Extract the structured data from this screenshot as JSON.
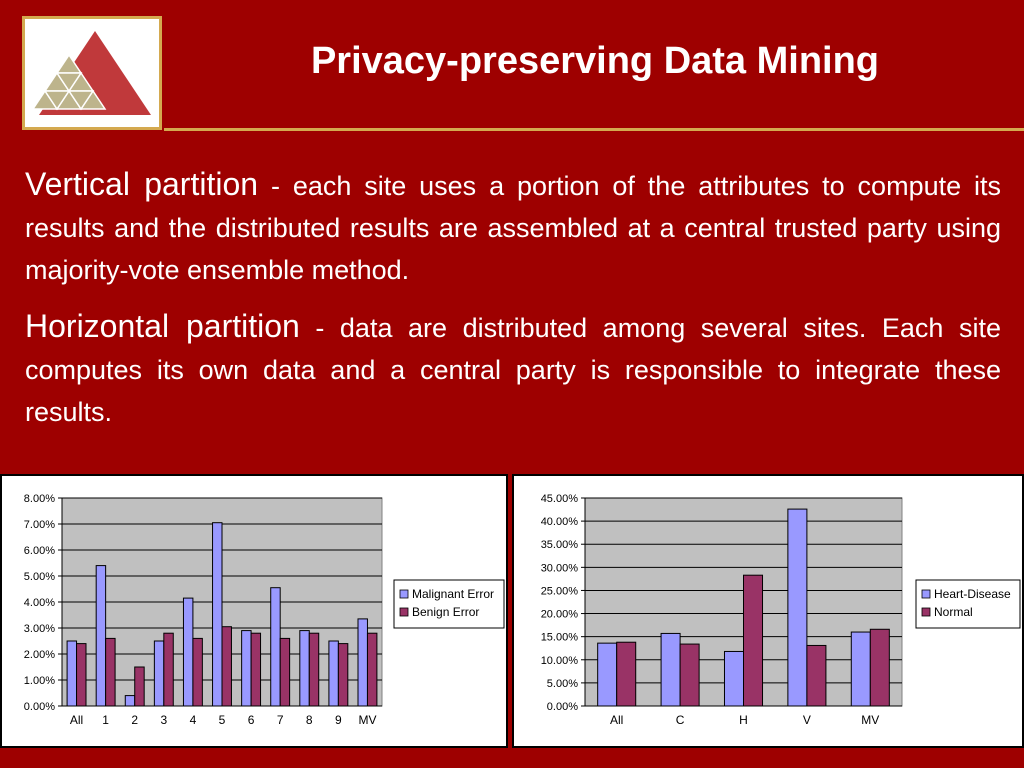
{
  "slide": {
    "title": "Privacy-preserving Data Mining",
    "colors": {
      "background": "#9e0000",
      "accent": "#d4a94f",
      "logo_red": "#c0393b",
      "logo_tan": "#bdb48c"
    },
    "paragraphs": [
      {
        "lead": "Vertical partition",
        "text": " - each site uses a portion of the attributes to compute its results and the distributed results are assembled at a central trusted party using majority-vote ensemble method."
      },
      {
        "lead": "Horizontal partition",
        "text": " - data are distributed among several sites. Each site computes its own data and a central party is responsible to integrate these results."
      }
    ]
  },
  "chart_data": [
    {
      "type": "bar",
      "categories": [
        "All",
        "1",
        "2",
        "3",
        "4",
        "5",
        "6",
        "7",
        "8",
        "9",
        "MV"
      ],
      "series": [
        {
          "name": "Malignant Error",
          "color": "#9999ff",
          "values": [
            2.5,
            5.4,
            0.4,
            2.5,
            4.15,
            7.05,
            2.9,
            4.55,
            2.9,
            2.5,
            3.35
          ]
        },
        {
          "name": "Benign Error",
          "color": "#993366",
          "values": [
            2.4,
            2.6,
            1.5,
            2.8,
            2.6,
            3.05,
            2.8,
            2.6,
            2.8,
            2.4,
            2.8
          ]
        }
      ],
      "ylim": [
        0,
        8
      ],
      "yticks": [
        "0.00%",
        "1.00%",
        "2.00%",
        "3.00%",
        "4.00%",
        "5.00%",
        "6.00%",
        "7.00%",
        "8.00%"
      ],
      "grid": true,
      "legend": "right"
    },
    {
      "type": "bar",
      "categories": [
        "All",
        "C",
        "H",
        "V",
        "MV"
      ],
      "series": [
        {
          "name": "Heart-Disease",
          "color": "#9999ff",
          "values": [
            13.6,
            15.7,
            11.8,
            42.6,
            16.0
          ]
        },
        {
          "name": "Normal",
          "color": "#993366",
          "values": [
            13.8,
            13.4,
            28.3,
            13.1,
            16.6
          ]
        }
      ],
      "ylim": [
        0,
        45
      ],
      "yticks": [
        "0.00%",
        "5.00%",
        "10.00%",
        "15.00%",
        "20.00%",
        "25.00%",
        "30.00%",
        "35.00%",
        "40.00%",
        "45.00%"
      ],
      "grid": true,
      "legend": "right"
    }
  ]
}
